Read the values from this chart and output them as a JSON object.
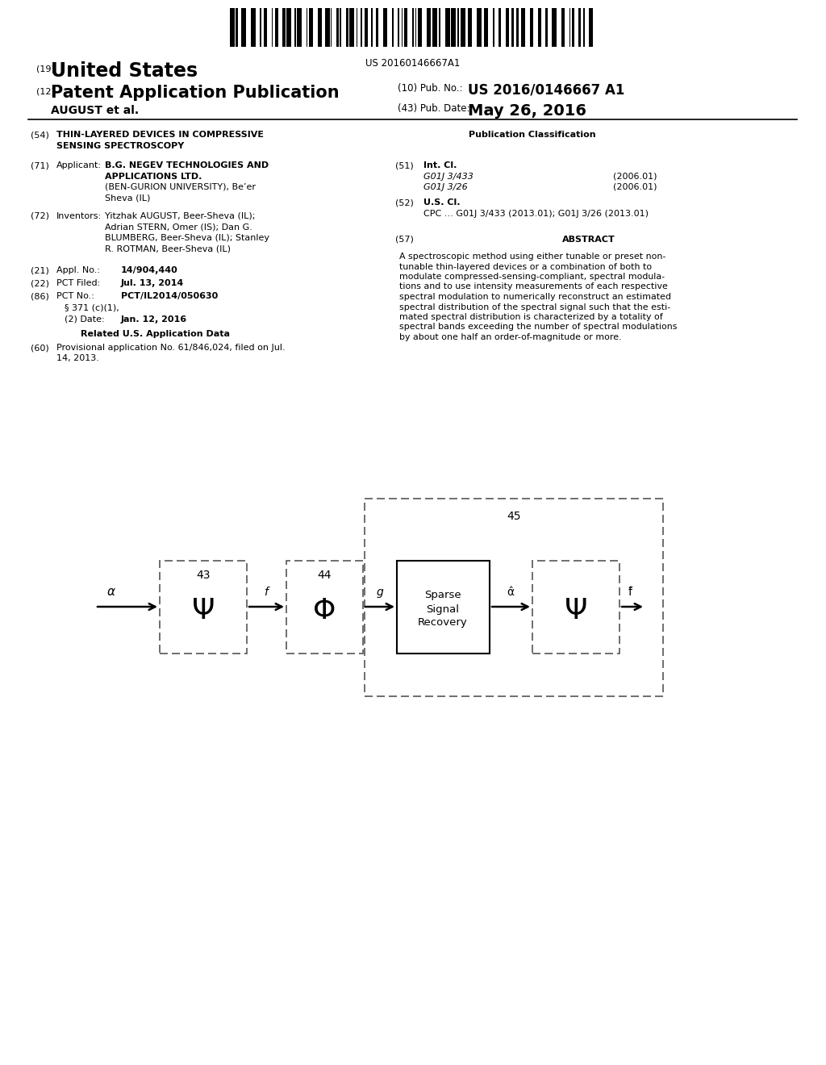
{
  "bg_color": "#ffffff",
  "barcode_text": "US 20160146667A1",
  "title_19": "(19)",
  "title_country": "United States",
  "title_12": "(12)",
  "title_type": "Patent Application Publication",
  "title_author": "AUGUST et al.",
  "pub_no_label": "(10) Pub. No.:",
  "pub_no_value": "US 2016/0146667 A1",
  "pub_date_label": "(43) Pub. Date:",
  "pub_date_value": "May 26, 2016",
  "field_54_label": "(54)",
  "field_54_line1": "THIN-LAYERED DEVICES IN COMPRESSIVE",
  "field_54_line2": "SENSING SPECTROSCOPY",
  "pub_class_header": "Publication Classification",
  "field_71_label": "(71)",
  "field_71_key": "Applicant:",
  "field_71_b1": "B.G. NEGEV TECHNOLOGIES AND",
  "field_71_b2": "APPLICATIONS LTD.",
  "field_71_n1": "(BEN-GURION UNIVERSITY), Be’er",
  "field_71_n2": "Sheva (IL)",
  "field_51_label": "(51)",
  "field_51_key": "Int. Cl.",
  "field_51_class1": "G01J 3/433",
  "field_51_year1": "(2006.01)",
  "field_51_class2": "G01J 3/26",
  "field_51_year2": "(2006.01)",
  "field_72_label": "(72)",
  "field_72_key": "Inventors:",
  "field_72_v1": "Yitzhak AUGUST, Beer-Sheva (IL);",
  "field_72_v2": "Adrian STERN, Omer (IS); Dan G.",
  "field_72_v3": "BLUMBERG, Beer-Sheva (IL); Stanley",
  "field_72_v4": "R. ROTMAN, Beer-Sheva (IL)",
  "field_52_label": "(52)",
  "field_52_key": "U.S. Cl.",
  "field_52_value": "CPC … G01J 3/433 (2013.01); G01J 3/26 (2013.01)",
  "field_21_label": "(21)",
  "field_21_key": "Appl. No.:",
  "field_21_value": "14/904,440",
  "field_22_label": "(22)",
  "field_22_key": "PCT Filed:",
  "field_22_value": "Jul. 13, 2014",
  "field_86_label": "(86)",
  "field_86_key": "PCT No.:",
  "field_86_value": "PCT/IL2014/050630",
  "field_86c_value": "Jan. 12, 2016",
  "related_header": "Related U.S. Application Data",
  "field_60_label": "(60)",
  "field_60_v1": "Provisional application No. 61/846,024, filed on Jul.",
  "field_60_v2": "14, 2013.",
  "field_57_label": "(57)",
  "field_57_key": "ABSTRACT",
  "abstract_lines": [
    "A spectroscopic method using either tunable or preset non-",
    "tunable thin-layered devices or a combination of both to",
    "modulate compressed-sensing-compliant, spectral modula-",
    "tions and to use intensity measurements of each respective",
    "spectral modulation to numerically reconstruct an estimated",
    "spectral distribution of the spectral signal such that the esti-",
    "mated spectral distribution is characterized by a totality of",
    "spectral bands exceeding the number of spectral modulations",
    "by about one half an order-of-magnitude or more."
  ],
  "diagram_label_43": "43",
  "diagram_label_44": "44",
  "diagram_label_45": "45",
  "diagram_label_alpha": "α",
  "diagram_label_f": "f",
  "diagram_label_g": "g",
  "diagram_label_alpha_hat": "α̂",
  "diagram_label_f_hat": "f̂",
  "diagram_psi1": "Ψ",
  "diagram_phi": "Φ",
  "diagram_sparse": "Sparse\nSignal\nRecovery",
  "diagram_psi2": "Ψ"
}
